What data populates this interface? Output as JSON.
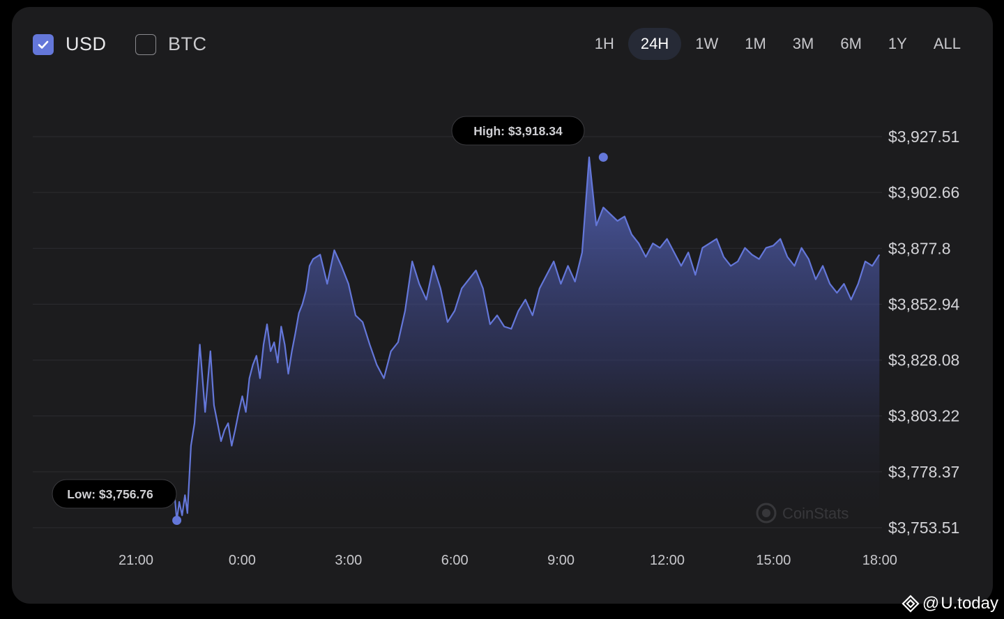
{
  "currency_toggle": [
    {
      "label": "USD",
      "checked": true
    },
    {
      "label": "BTC",
      "checked": false
    }
  ],
  "time_ranges": [
    "1H",
    "24H",
    "1W",
    "1M",
    "3M",
    "6M",
    "1Y",
    "ALL"
  ],
  "active_range": "24H",
  "watermark": "CoinStats",
  "footer": {
    "at": "@",
    "brand": "U.today"
  },
  "colors": {
    "line": "#6477d9",
    "card": "#1c1c1e",
    "page": "#000000"
  },
  "chart_data": {
    "type": "area",
    "title": "",
    "xlabel": "",
    "ylabel": "",
    "x_ticks": [
      "21:00",
      "0:00",
      "3:00",
      "6:00",
      "9:00",
      "12:00",
      "15:00",
      "18:00"
    ],
    "y_ticks": [
      "$3,927.51",
      "$3,902.66",
      "$3,877.8",
      "$3,852.94",
      "$3,828.08",
      "$3,803.22",
      "$3,778.37",
      "$3,753.51"
    ],
    "y_tick_values": [
      3927.51,
      3902.66,
      3877.8,
      3852.94,
      3828.08,
      3803.22,
      3778.37,
      3753.51
    ],
    "ylim": [
      3753.51,
      3927.51
    ],
    "x_range_hours": [
      -1.9,
      23.9
    ],
    "grid": true,
    "high": {
      "label": "High: $3,918.34",
      "value": 3918.34,
      "hour": 10.2
    },
    "low": {
      "label": "Low: $3,756.76",
      "value": 3756.76,
      "hour": -1.85
    },
    "series": [
      {
        "hours": [
          -1.9,
          -1.85,
          -1.78,
          -1.7,
          -1.62,
          -1.55,
          -1.45,
          -1.35,
          -1.2,
          -1.05,
          -0.9,
          -0.8,
          -0.7,
          -0.6,
          -0.5,
          -0.4,
          -0.3,
          -0.2,
          -0.1,
          0.0,
          0.1,
          0.2,
          0.3,
          0.4,
          0.5,
          0.6,
          0.7,
          0.8,
          0.9,
          1.0,
          1.1,
          1.2,
          1.3,
          1.4,
          1.5,
          1.6,
          1.7,
          1.8,
          1.9,
          2.0,
          2.2,
          2.4,
          2.6,
          2.8,
          3.0,
          3.2,
          3.4,
          3.6,
          3.8,
          4.0,
          4.2,
          4.4,
          4.6,
          4.8,
          5.0,
          5.2,
          5.4,
          5.6,
          5.8,
          6.0,
          6.2,
          6.4,
          6.6,
          6.8,
          7.0,
          7.2,
          7.4,
          7.6,
          7.8,
          8.0,
          8.2,
          8.4,
          8.6,
          8.8,
          9.0,
          9.2,
          9.4,
          9.6,
          9.8,
          10.0,
          10.2,
          10.4,
          10.6,
          10.8,
          11.0,
          11.2,
          11.4,
          11.6,
          11.8,
          12.0,
          12.2,
          12.4,
          12.6,
          12.8,
          13.0,
          13.2,
          13.4,
          13.6,
          13.8,
          14.0,
          14.2,
          14.4,
          14.6,
          14.8,
          15.0,
          15.2,
          15.4,
          15.6,
          15.8,
          16.0,
          16.2,
          16.4,
          16.6,
          16.8,
          17.0,
          17.2,
          17.4,
          17.6,
          17.8,
          18.0
        ],
        "values": [
          3766.0,
          3756.76,
          3765.0,
          3759.0,
          3768.0,
          3760.0,
          3790.0,
          3800.0,
          3835.0,
          3805.0,
          3832.0,
          3808.0,
          3800.0,
          3792.0,
          3797.0,
          3800.0,
          3790.0,
          3797.0,
          3805.0,
          3812.0,
          3805.0,
          3820.0,
          3826.0,
          3830.0,
          3820.0,
          3835.0,
          3844.0,
          3832.0,
          3836.0,
          3827.0,
          3843.0,
          3835.0,
          3822.0,
          3832.0,
          3840.0,
          3849.0,
          3853.0,
          3859.0,
          3870.0,
          3873.0,
          3875.0,
          3862.0,
          3877.0,
          3870.0,
          3862.0,
          3848.0,
          3845.0,
          3835.0,
          3826.0,
          3820.0,
          3832.0,
          3836.0,
          3850.0,
          3872.0,
          3862.0,
          3855.0,
          3870.0,
          3860.0,
          3845.0,
          3850.0,
          3860.0,
          3864.0,
          3868.0,
          3860.0,
          3844.0,
          3848.0,
          3843.0,
          3842.0,
          3850.0,
          3855.0,
          3848.0,
          3860.0,
          3866.0,
          3872.0,
          3862.0,
          3870.0,
          3863.0,
          3876.0,
          3918.34,
          3888.0,
          3896.0,
          3893.0,
          3890.0,
          3892.0,
          3884.0,
          3880.0,
          3874.0,
          3880.0,
          3878.0,
          3882.0,
          3876.0,
          3870.0,
          3876.0,
          3866.0,
          3878.0,
          3880.0,
          3882.0,
          3874.0,
          3870.0,
          3872.0,
          3878.0,
          3875.0,
          3873.0,
          3878.0,
          3879.0,
          3882.0,
          3874.0,
          3870.0,
          3878.0,
          3873.0,
          3864.0,
          3870.0,
          3862.0,
          3858.0,
          3862.0,
          3855.0,
          3862.0,
          3872.0,
          3870.0,
          3875.0
        ]
      }
    ]
  }
}
